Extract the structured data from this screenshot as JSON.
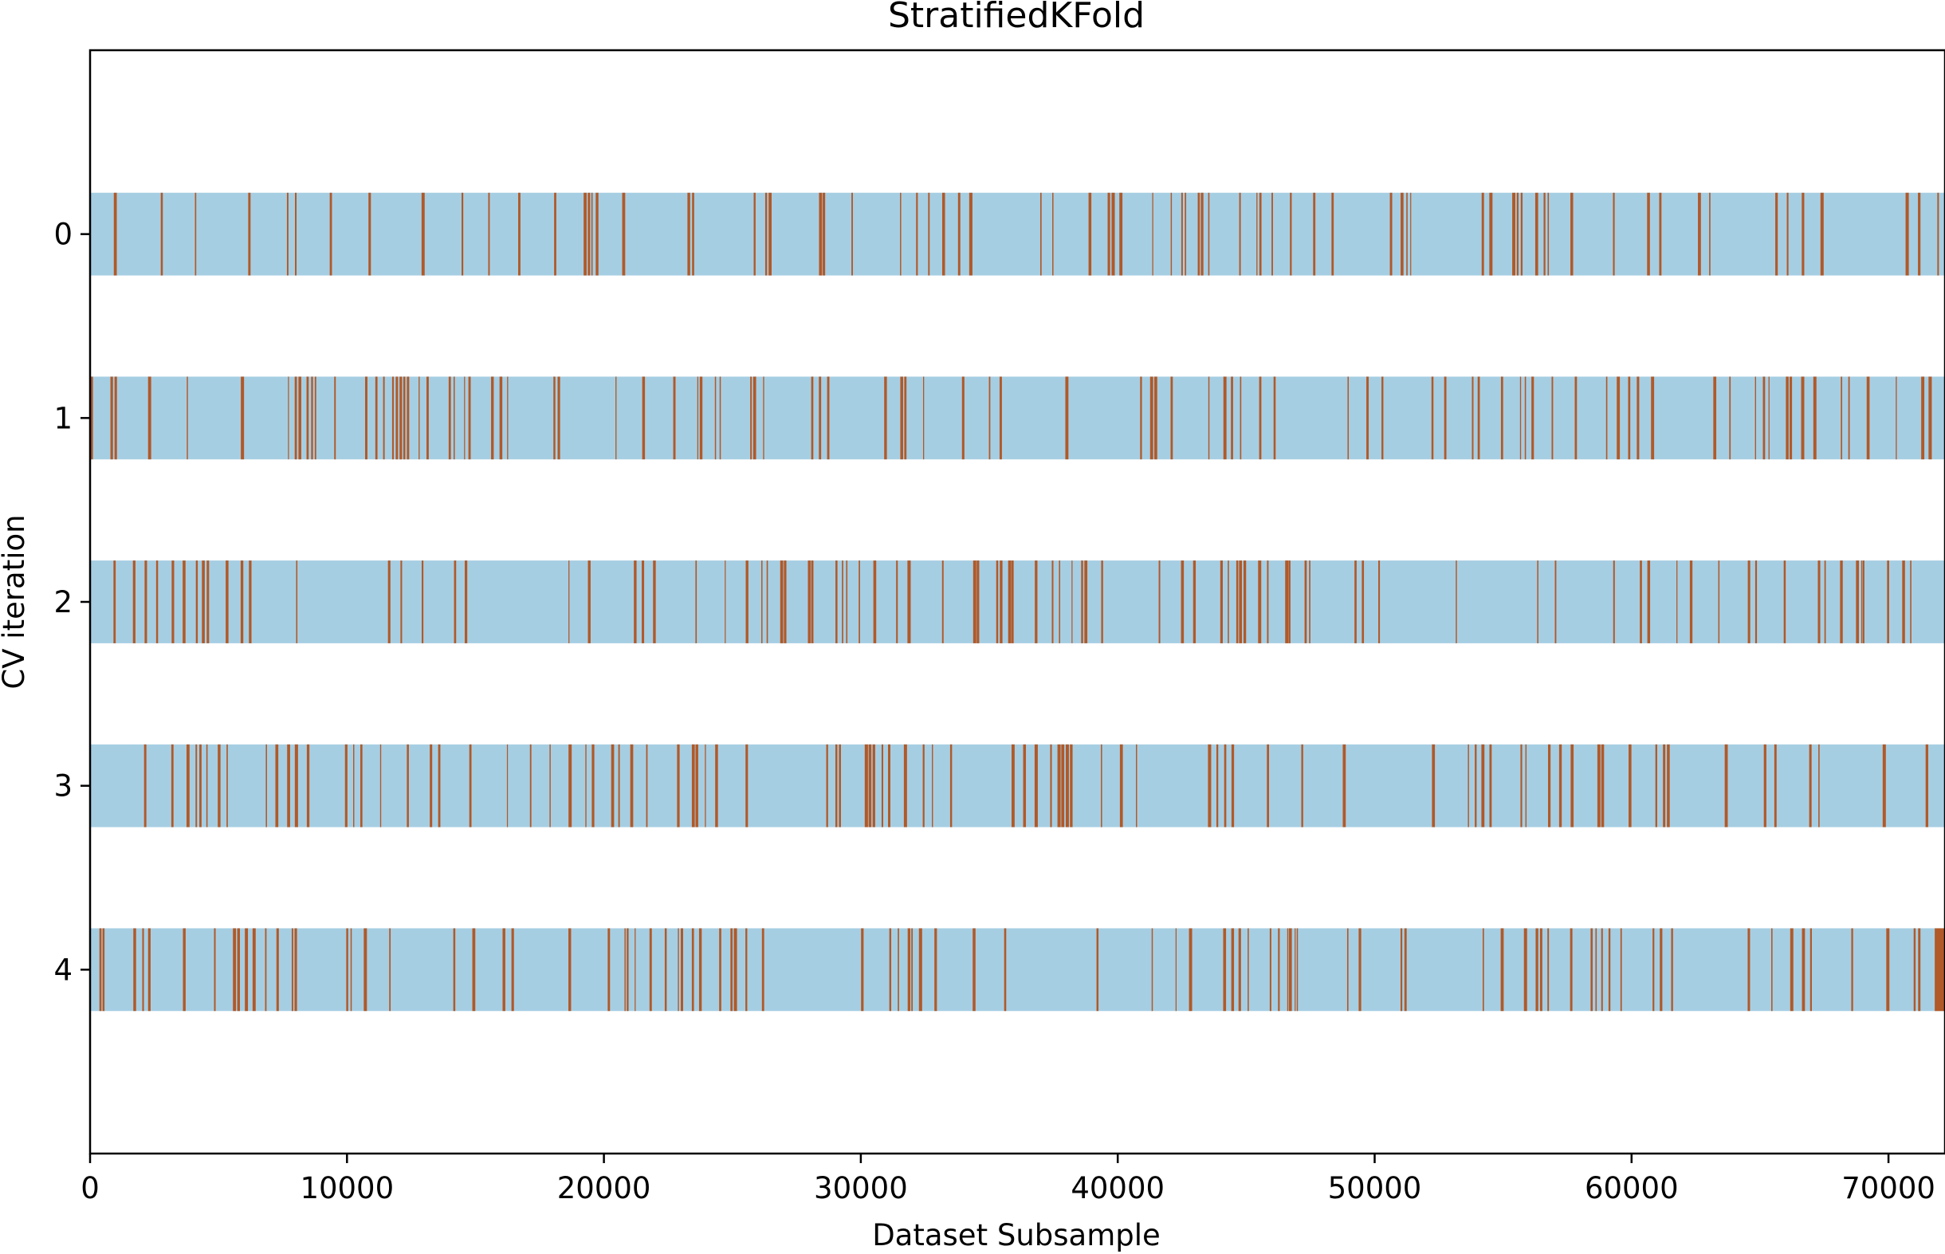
{
  "chart_data": {
    "type": "heatmap",
    "title": "StratifiedKFold",
    "xlabel": "Dataset Subsample",
    "ylabel": "CV iteration",
    "xlim": [
      0,
      72200
    ],
    "ylim": [
      -1,
      5
    ],
    "x_ticks": [
      0,
      10000,
      20000,
      30000,
      40000,
      50000,
      60000,
      70000
    ],
    "x_tick_labels": [
      "0",
      "10000",
      "20000",
      "30000",
      "40000",
      "50000",
      "60000",
      "70000"
    ],
    "y_ticks": [
      0,
      1,
      2,
      3,
      4
    ],
    "y_tick_labels": [
      "0",
      "1",
      "2",
      "3",
      "4"
    ],
    "n_samples": 72200,
    "folds": [
      {
        "iteration": 0,
        "test_fraction": 0.2
      },
      {
        "iteration": 1,
        "test_fraction": 0.2
      },
      {
        "iteration": 2,
        "test_fraction": 0.2
      },
      {
        "iteration": 3,
        "test_fraction": 0.2
      },
      {
        "iteration": 4,
        "test_fraction": 0.2
      }
    ],
    "colors": {
      "train": "#a6cee3",
      "test": "#b15928"
    },
    "grid": false,
    "legend": "none"
  }
}
